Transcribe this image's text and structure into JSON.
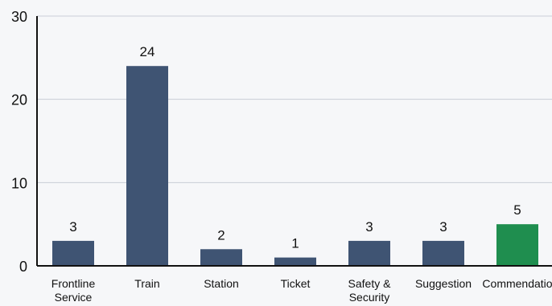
{
  "chart_data": {
    "type": "bar",
    "categories": [
      "Frontline Service",
      "Train",
      "Station",
      "Ticket",
      "Safety & Security",
      "Suggestion",
      "Commendation"
    ],
    "category_lines": [
      [
        "Frontline",
        "Service"
      ],
      [
        "Train"
      ],
      [
        "Station"
      ],
      [
        "Ticket"
      ],
      [
        "Safety &",
        "Security"
      ],
      [
        "Suggestion"
      ],
      [
        "Commendatio"
      ]
    ],
    "values": [
      3,
      24,
      2,
      1,
      3,
      3,
      5
    ],
    "data_labels": [
      "3",
      "24",
      "2",
      "1",
      "3",
      "3",
      "5"
    ],
    "bar_colors": [
      "#3f5473",
      "#3f5473",
      "#3f5473",
      "#3f5473",
      "#3f5473",
      "#3f5473",
      "#1f8e4f"
    ],
    "ylim": [
      0,
      30
    ],
    "yticks": [
      0,
      10,
      20,
      30
    ],
    "ytick_labels": [
      "0",
      "10",
      "20",
      "30"
    ],
    "grid": true,
    "legend": "none",
    "colors": {
      "axis": "#111111",
      "grid": "#c9ccd6"
    }
  }
}
